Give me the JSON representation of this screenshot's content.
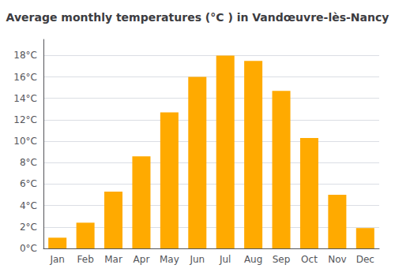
{
  "chart_data": {
    "type": "bar",
    "title": "Average monthly temperatures (°C ) in Vandœuvre-lès-Nancy",
    "categories": [
      "Jan",
      "Feb",
      "Mar",
      "Apr",
      "May",
      "Jun",
      "Jul",
      "Aug",
      "Sep",
      "Oct",
      "Nov",
      "Dec"
    ],
    "values": [
      1.0,
      2.4,
      5.3,
      8.6,
      12.7,
      16.0,
      18.0,
      17.5,
      14.7,
      10.3,
      5.0,
      1.9
    ],
    "color": "#FFAA00",
    "ylim": [
      0,
      19.5
    ],
    "yticks": [
      {
        "value": 0,
        "label": "0°C"
      },
      {
        "value": 2,
        "label": "2°C"
      },
      {
        "value": 4,
        "label": "4°C"
      },
      {
        "value": 6,
        "label": "6°C"
      },
      {
        "value": 8,
        "label": "8°C"
      },
      {
        "value": 10,
        "label": "10°C"
      },
      {
        "value": 12,
        "label": "12°C"
      },
      {
        "value": 14,
        "label": "14°C"
      },
      {
        "value": 16,
        "label": "16°C"
      },
      {
        "value": 18,
        "label": "18°C"
      }
    ],
    "grid": true
  }
}
